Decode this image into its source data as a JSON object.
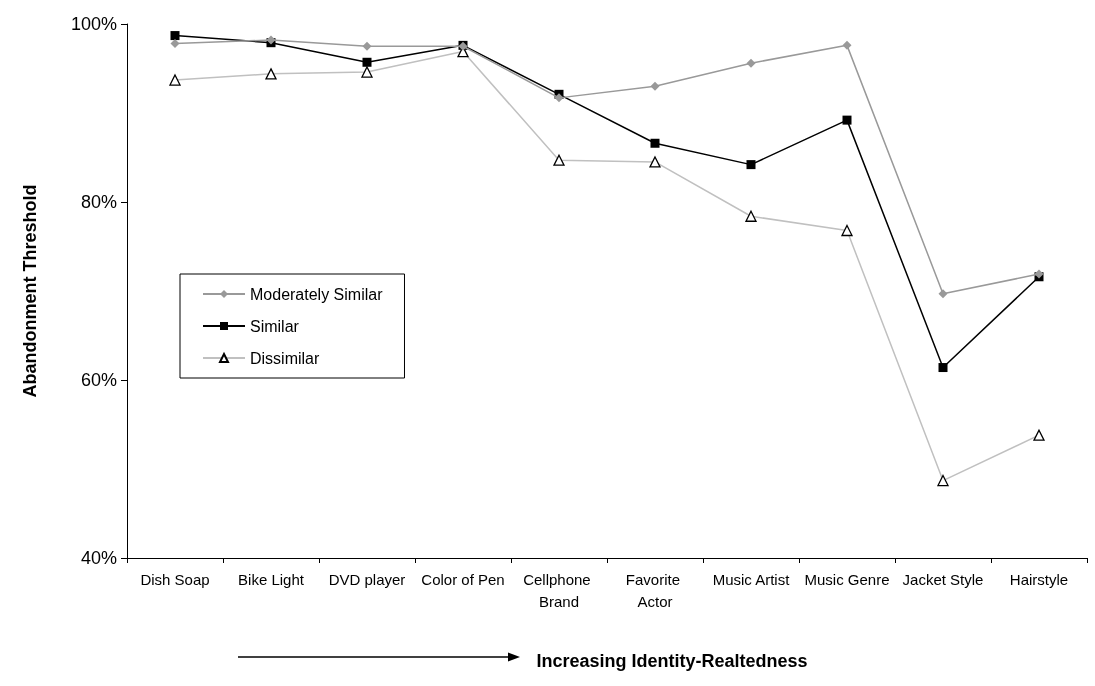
{
  "chart_data": {
    "type": "line",
    "xlabel": "Increasing Identity-Realtedness",
    "ylabel": "Abandonment Threshold",
    "categories": [
      "Dish Soap",
      "Bike Light",
      "DVD player",
      "Color of Pen",
      "Cellphone Brand",
      "Favorite Actor",
      "Music Artist",
      "Music Genre",
      "Jacket Style",
      "Hairstyle"
    ],
    "series": [
      {
        "name": "Moderately Similar",
        "color": "#999999",
        "marker": "diamond",
        "values": [
          97.8,
          98.2,
          97.5,
          97.5,
          91.7,
          93.0,
          95.6,
          97.6,
          69.7,
          71.9
        ]
      },
      {
        "name": "Similar",
        "color": "#000000",
        "marker": "square",
        "values": [
          98.7,
          97.9,
          95.7,
          97.6,
          92.1,
          86.6,
          84.2,
          89.2,
          61.4,
          71.6
        ]
      },
      {
        "name": "Dissimilar",
        "color": "#c0c0c0",
        "marker": "triangle",
        "values": [
          93.7,
          94.4,
          94.6,
          96.9,
          84.7,
          84.5,
          78.4,
          76.8,
          48.7,
          53.8
        ]
      }
    ],
    "ylim": [
      40,
      100
    ],
    "yticks": [
      {
        "value": 40,
        "label": "40%"
      },
      {
        "value": 60,
        "label": "60%"
      },
      {
        "value": 80,
        "label": "80%"
      },
      {
        "value": 100,
        "label": "100%"
      }
    ],
    "grid": false,
    "legend": "left",
    "line_style": "solid"
  }
}
